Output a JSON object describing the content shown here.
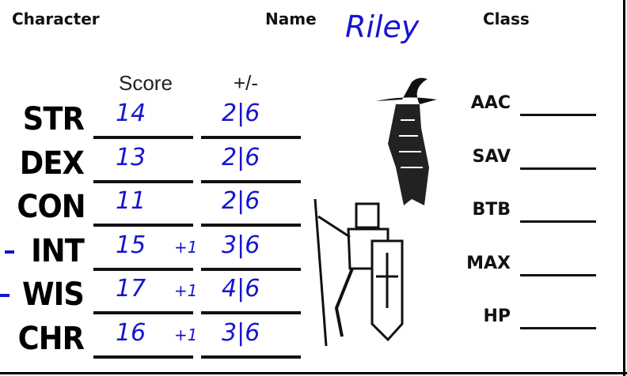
{
  "header": {
    "character_label": "Character",
    "name_label": "Name",
    "name_value": "Riley",
    "class_label": "Class"
  },
  "columns": {
    "score": "Score",
    "modifier": "+/-"
  },
  "stats": [
    {
      "label": "STR",
      "score": "14",
      "bonus": "",
      "modifier": "2|6",
      "marked": false
    },
    {
      "label": "DEX",
      "score": "13",
      "bonus": "",
      "modifier": "2|6",
      "marked": false
    },
    {
      "label": "CON",
      "score": "11",
      "bonus": "",
      "modifier": "2|6",
      "marked": false
    },
    {
      "label": "INT",
      "score": "15",
      "bonus": "+1",
      "modifier": "3|6",
      "marked": true
    },
    {
      "label": "WIS",
      "score": "17",
      "bonus": "+1",
      "modifier": "4|6",
      "marked": true
    },
    {
      "label": "CHR",
      "score": "16",
      "bonus": "+1",
      "modifier": "3|6",
      "marked": false
    }
  ],
  "right_fields": [
    {
      "label": "AAC",
      "value": ""
    },
    {
      "label": "SAV",
      "value": ""
    },
    {
      "label": "BTB",
      "value": ""
    },
    {
      "label": "MAX",
      "value": ""
    },
    {
      "label": "HP",
      "value": ""
    }
  ],
  "colors": {
    "ink": "#1515d0",
    "print": "#111111"
  },
  "illustrations": [
    "wizard-figure",
    "knight-figure"
  ]
}
